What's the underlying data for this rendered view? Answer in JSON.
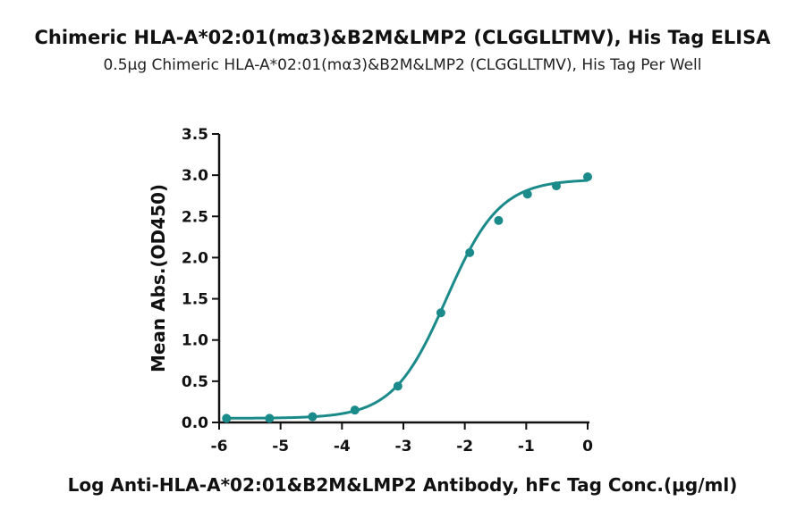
{
  "chart_data": {
    "type": "scatter",
    "title": "Chimeric HLA-A*02:01(mα3)&B2M&LMP2 (CLGGLLTMV), His Tag ELISA",
    "subtitle": "0.5μg Chimeric HLA-A*02:01(mα3)&B2M&LMP2 (CLGGLLTMV), His Tag Per Well",
    "xlabel": "Log Anti-HLA-A*02:01&B2M&LMP2 Antibody, hFc Tag Conc.(μg/ml)",
    "ylabel": "Mean Abs.(OD450)",
    "xlim": [
      -6,
      0
    ],
    "ylim": [
      0,
      3.5
    ],
    "x_ticks": [
      "-6",
      "-5",
      "-4",
      "-3",
      "-2",
      "-1",
      "0"
    ],
    "y_ticks": [
      "0.0",
      "0.5",
      "1.0",
      "1.5",
      "2.0",
      "2.5",
      "3.0",
      "3.5"
    ],
    "grid": false,
    "color": "#1a8a8a",
    "series": [
      {
        "x": [
          -5.88,
          -5.18,
          -4.48,
          -3.79,
          -3.09,
          -2.39,
          -1.92,
          -1.45,
          -0.98,
          -0.51,
          0.0
        ],
        "y": [
          0.05,
          0.05,
          0.07,
          0.15,
          0.44,
          1.33,
          2.06,
          2.45,
          2.77,
          2.87,
          2.98
        ]
      }
    ],
    "fit_curve": {
      "bottom": 0.05,
      "top": 2.95,
      "logEC50": -2.3,
      "hill": 1.0
    }
  }
}
